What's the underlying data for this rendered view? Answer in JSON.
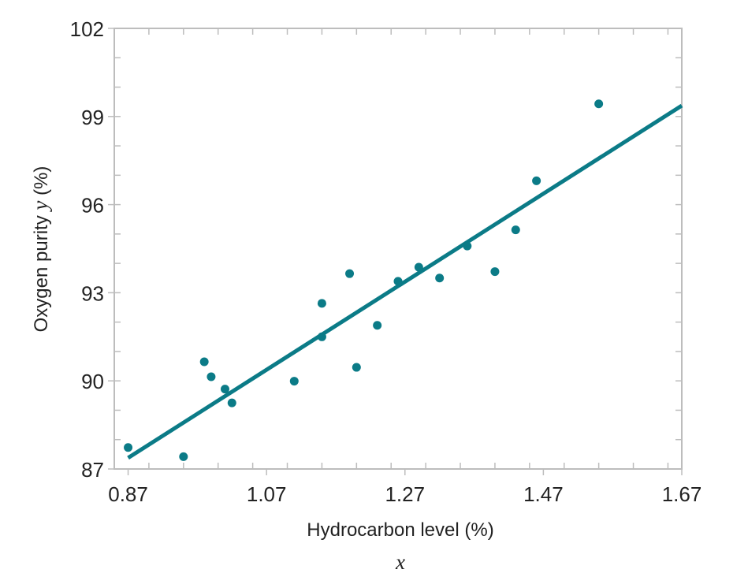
{
  "chart_data": {
    "type": "scatter",
    "xlabel": "Hydrocarbon level (%)",
    "xvar": "x",
    "ylabel_prefix": "Oxygen purity ",
    "ylabel_var": "y",
    "ylabel_suffix": " (%)",
    "xlim": [
      0.85,
      1.67
    ],
    "ylim": [
      87,
      102
    ],
    "xticks": [
      "0.87",
      "1.07",
      "1.27",
      "1.47",
      "1.67"
    ],
    "xtick_values": [
      0.87,
      1.07,
      1.27,
      1.47,
      1.67
    ],
    "yticks": [
      "87",
      "90",
      "93",
      "96",
      "99",
      "102"
    ],
    "ytick_values": [
      87,
      90,
      93,
      96,
      99,
      102
    ],
    "x_minor_step": 0.05,
    "y_minor_step": 1,
    "grid": false,
    "color": "#0b7b87",
    "points": [
      {
        "x": 0.87,
        "y": 87.73
      },
      {
        "x": 0.95,
        "y": 87.42
      },
      {
        "x": 0.98,
        "y": 90.65
      },
      {
        "x": 0.99,
        "y": 90.14
      },
      {
        "x": 1.01,
        "y": 89.72
      },
      {
        "x": 1.02,
        "y": 89.25
      },
      {
        "x": 1.11,
        "y": 89.99
      },
      {
        "x": 1.15,
        "y": 91.5
      },
      {
        "x": 1.15,
        "y": 92.64
      },
      {
        "x": 1.19,
        "y": 93.65
      },
      {
        "x": 1.2,
        "y": 90.46
      },
      {
        "x": 1.23,
        "y": 91.89
      },
      {
        "x": 1.26,
        "y": 93.39
      },
      {
        "x": 1.29,
        "y": 93.87
      },
      {
        "x": 1.32,
        "y": 93.5
      },
      {
        "x": 1.36,
        "y": 94.59
      },
      {
        "x": 1.4,
        "y": 93.72
      },
      {
        "x": 1.43,
        "y": 95.14
      },
      {
        "x": 1.46,
        "y": 96.81
      },
      {
        "x": 1.55,
        "y": 99.43
      }
    ],
    "regression": {
      "x": [
        0.87,
        1.67
      ],
      "y": [
        87.38,
        99.37
      ]
    }
  }
}
